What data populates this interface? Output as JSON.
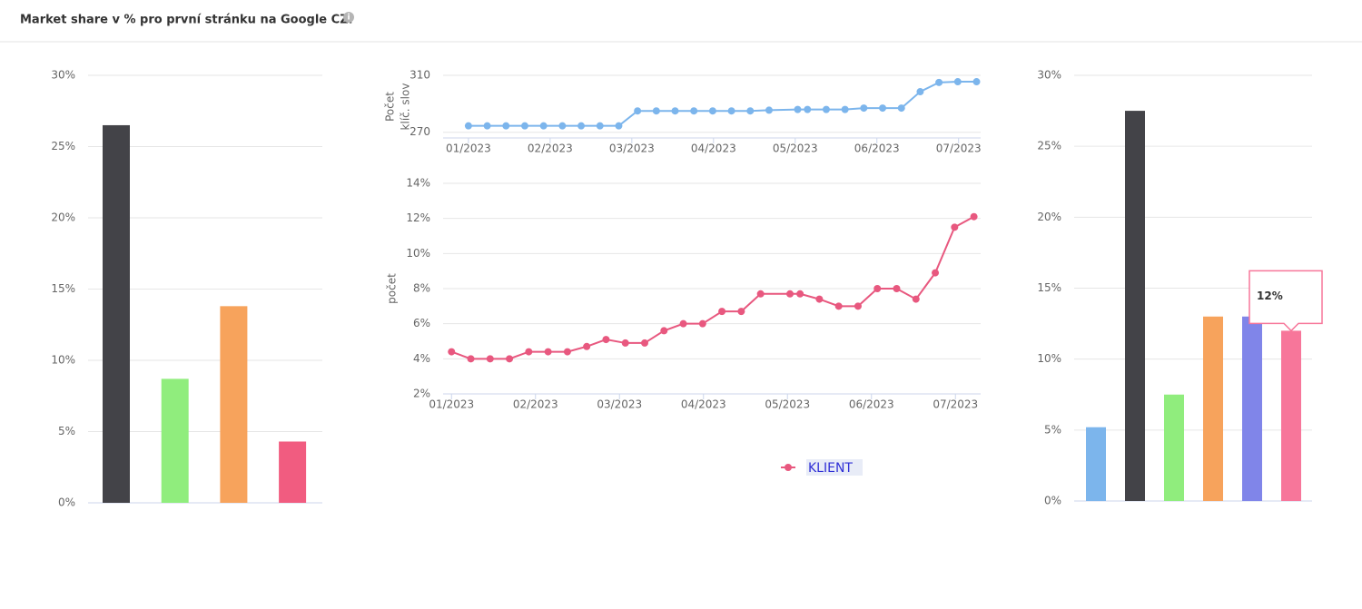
{
  "header": {
    "title": "Market share v % pro první stránku na Google CZ."
  },
  "chart_data": [
    {
      "type": "bar",
      "values": [
        26.5,
        8.7,
        13.8,
        4.3
      ],
      "colors": [
        "#434348",
        "#90ed7d",
        "#f7a35c",
        "#f15c80"
      ],
      "ylim": [
        0,
        30
      ],
      "yticks": [
        {
          "value": 0,
          "label": "0%"
        },
        {
          "value": 5,
          "label": "5%"
        },
        {
          "value": 10,
          "label": "10%"
        },
        {
          "value": 15,
          "label": "15%"
        },
        {
          "value": 20,
          "label": "20%"
        },
        {
          "value": 25,
          "label": "25%"
        },
        {
          "value": 30,
          "label": "30%"
        }
      ],
      "grid": true
    },
    {
      "type": "line",
      "ylabel": [
        "Počet",
        "klíč. slov"
      ],
      "color": "#7cb5ec",
      "x": [
        1.0,
        1.23,
        1.46,
        1.69,
        1.92,
        2.15,
        2.38,
        2.61,
        2.84,
        3.07,
        3.3,
        3.53,
        3.76,
        3.99,
        4.22,
        4.45,
        4.68,
        5.03,
        5.15,
        5.38,
        5.61,
        5.84,
        6.07,
        6.3,
        6.53,
        6.76,
        6.99,
        7.22
      ],
      "values": [
        274.5,
        274.5,
        274.5,
        274.5,
        274.5,
        274.5,
        274.5,
        274.5,
        274.5,
        285,
        285,
        285,
        285,
        285,
        285,
        285,
        285.5,
        286,
        286,
        286,
        286,
        287,
        287,
        287,
        298.5,
        305,
        305.5,
        305.5
      ],
      "xlim": [
        0.69,
        7.27
      ],
      "ylim": [
        266,
        310
      ],
      "yticks": [
        270,
        310
      ],
      "xticks": [
        {
          "value": 1,
          "label": "01/2023"
        },
        {
          "value": 2,
          "label": "02/2023"
        },
        {
          "value": 3,
          "label": "03/2023"
        },
        {
          "value": 4,
          "label": "04/2023"
        },
        {
          "value": 5,
          "label": "05/2023"
        },
        {
          "value": 6,
          "label": "06/2023"
        },
        {
          "value": 7,
          "label": "07/2023"
        }
      ],
      "grid": true
    },
    {
      "type": "line",
      "ylabel": [
        "počet"
      ],
      "x": [
        1.0,
        1.23,
        1.46,
        1.69,
        1.92,
        2.15,
        2.38,
        2.61,
        2.84,
        3.07,
        3.3,
        3.53,
        3.76,
        3.99,
        4.22,
        4.45,
        4.68,
        5.03,
        5.15,
        5.38,
        5.61,
        5.84,
        6.07,
        6.3,
        6.53,
        6.76,
        6.99,
        7.22
      ],
      "series": [
        {
          "name": "KLIENT",
          "color": "#e8587f",
          "values": [
            4.4,
            4.0,
            4.0,
            4.0,
            4.4,
            4.4,
            4.4,
            4.7,
            5.1,
            4.9,
            4.9,
            5.6,
            6.0,
            6.0,
            6.7,
            6.7,
            7.7,
            7.7,
            7.7,
            7.4,
            7.0,
            7.0,
            8.0,
            8.0,
            7.4,
            8.9,
            11.5,
            12.1
          ]
        }
      ],
      "xlim": [
        0.9,
        7.3
      ],
      "ylim": [
        2,
        14
      ],
      "yticks": [
        {
          "value": 2,
          "label": "2%"
        },
        {
          "value": 4,
          "label": "4%"
        },
        {
          "value": 6,
          "label": "6%"
        },
        {
          "value": 8,
          "label": "8%"
        },
        {
          "value": 10,
          "label": "10%"
        },
        {
          "value": 12,
          "label": "12%"
        },
        {
          "value": 14,
          "label": "14%"
        }
      ],
      "xticks": [
        {
          "value": 1,
          "label": "01/2023"
        },
        {
          "value": 2,
          "label": "02/2023"
        },
        {
          "value": 3,
          "label": "03/2023"
        },
        {
          "value": 4,
          "label": "04/2023"
        },
        {
          "value": 5,
          "label": "05/2023"
        },
        {
          "value": 6,
          "label": "06/2023"
        },
        {
          "value": 7,
          "label": "07/2023"
        }
      ],
      "grid": true
    },
    {
      "type": "bar",
      "values": [
        5.2,
        27.5,
        7.5,
        13,
        13,
        12
      ],
      "colors": [
        "#7cb5ec",
        "#434348",
        "#90ed7d",
        "#f7a35c",
        "#8085e9",
        "#f7769a"
      ],
      "tooltip": "12%",
      "ylim": [
        0,
        30
      ],
      "yticks": [
        {
          "value": 0,
          "label": "0%"
        },
        {
          "value": 5,
          "label": "5%"
        },
        {
          "value": 10,
          "label": "10%"
        },
        {
          "value": 15,
          "label": "15%"
        },
        {
          "value": 20,
          "label": "20%"
        },
        {
          "value": 25,
          "label": "25%"
        },
        {
          "value": 30,
          "label": "30%"
        }
      ],
      "grid": true
    }
  ]
}
